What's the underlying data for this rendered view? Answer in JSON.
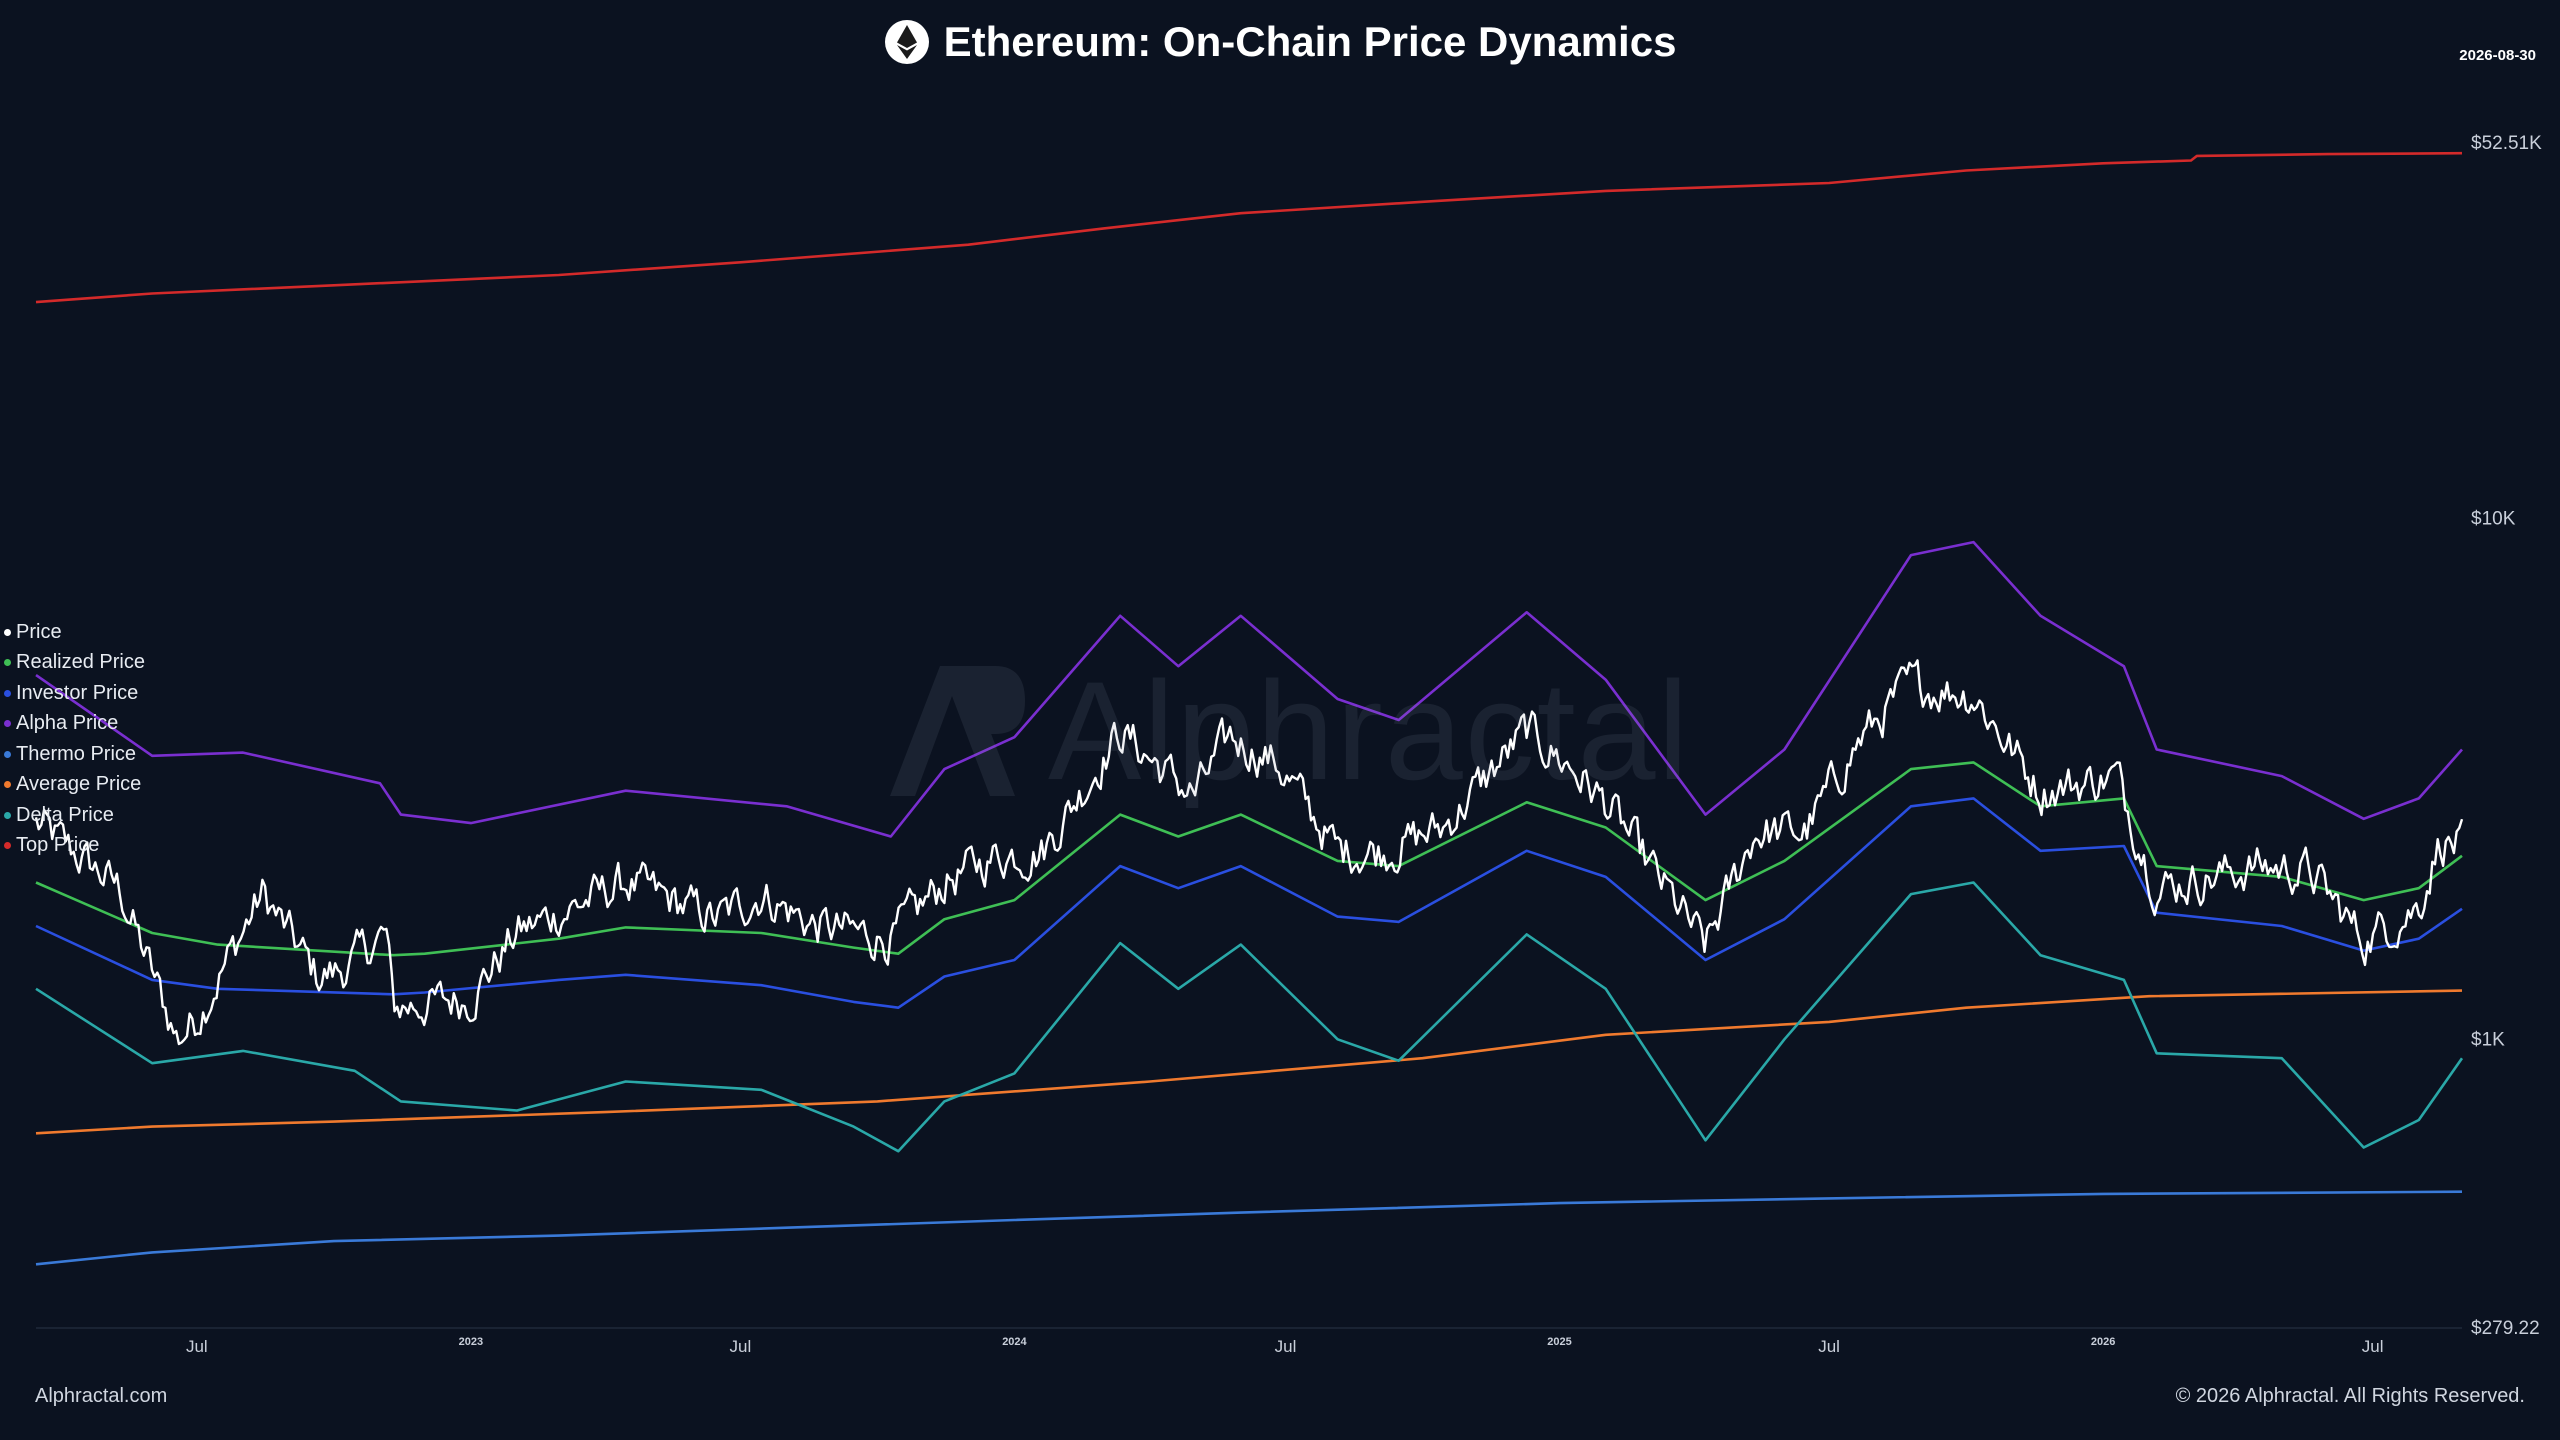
{
  "header": {
    "title": "Ethereum: On-Chain Price Dynamics",
    "date": "2026-08-30"
  },
  "footer": {
    "left": "Alphractal.com",
    "right": "© 2026 Alphractal. All Rights Reserved."
  },
  "watermark": "Alphractal",
  "chart_data": {
    "type": "line",
    "y_scale": "log",
    "ylim": [
      279.22,
      52510
    ],
    "x_range": [
      "2022-03-15",
      "2026-08-30"
    ],
    "y_ticks": [
      {
        "value": 52510,
        "label": "$52.51K"
      },
      {
        "value": 10000,
        "label": "$10K"
      },
      {
        "value": 1000,
        "label": "$1K"
      },
      {
        "value": 279.22,
        "label": "$279.22"
      }
    ],
    "x_ticks": [
      {
        "date": "2022-07-01",
        "label": "Jul",
        "style": "month"
      },
      {
        "date": "2023-01-01",
        "label": "2023",
        "style": "year"
      },
      {
        "date": "2023-07-01",
        "label": "Jul",
        "style": "month"
      },
      {
        "date": "2024-01-01",
        "label": "2024",
        "style": "year"
      },
      {
        "date": "2024-07-01",
        "label": "Jul",
        "style": "month"
      },
      {
        "date": "2025-01-01",
        "label": "2025",
        "style": "year"
      },
      {
        "date": "2025-07-01",
        "label": "Jul",
        "style": "month"
      },
      {
        "date": "2026-01-01",
        "label": "2026",
        "style": "year"
      },
      {
        "date": "2026-07-01",
        "label": "Jul",
        "style": "month"
      }
    ],
    "legend_position": "left",
    "series": [
      {
        "name": "Top Price",
        "color": "#d42a2a",
        "points": [
          [
            "2022-03-15",
            26000
          ],
          [
            "2022-06-01",
            27000
          ],
          [
            "2022-10-01",
            28000
          ],
          [
            "2023-03-01",
            29300
          ],
          [
            "2023-07-01",
            31000
          ],
          [
            "2023-12-01",
            33500
          ],
          [
            "2024-03-01",
            36000
          ],
          [
            "2024-06-01",
            38500
          ],
          [
            "2024-10-01",
            40500
          ],
          [
            "2025-02-01",
            42500
          ],
          [
            "2025-07-01",
            44000
          ],
          [
            "2025-10-01",
            46500
          ],
          [
            "2026-01-01",
            48000
          ],
          [
            "2026-03-01",
            48600
          ],
          [
            "2026-03-05",
            49600
          ],
          [
            "2026-06-01",
            50000
          ],
          [
            "2026-08-30",
            50200
          ]
        ]
      },
      {
        "name": "Realized Price",
        "color": "#3fbf55",
        "points": [
          [
            "2022-03-15",
            2000
          ],
          [
            "2022-06-01",
            1600
          ],
          [
            "2022-07-15",
            1520
          ],
          [
            "2022-11-10",
            1450
          ],
          [
            "2022-12-01",
            1460
          ],
          [
            "2023-03-01",
            1560
          ],
          [
            "2023-04-15",
            1640
          ],
          [
            "2023-07-15",
            1600
          ],
          [
            "2023-09-15",
            1500
          ],
          [
            "2023-10-15",
            1460
          ],
          [
            "2023-11-15",
            1700
          ],
          [
            "2024-01-01",
            1850
          ],
          [
            "2024-03-12",
            2700
          ],
          [
            "2024-04-20",
            2450
          ],
          [
            "2024-06-01",
            2700
          ],
          [
            "2024-08-05",
            2200
          ],
          [
            "2024-09-15",
            2150
          ],
          [
            "2024-12-10",
            2850
          ],
          [
            "2025-02-01",
            2550
          ],
          [
            "2025-04-09",
            1850
          ],
          [
            "2025-06-01",
            2200
          ],
          [
            "2025-08-25",
            3300
          ],
          [
            "2025-10-06",
            3400
          ],
          [
            "2025-11-20",
            2800
          ],
          [
            "2026-01-15",
            2900
          ],
          [
            "2026-02-06",
            2150
          ],
          [
            "2026-05-01",
            2050
          ],
          [
            "2026-06-25",
            1850
          ],
          [
            "2026-08-01",
            1950
          ],
          [
            "2026-08-30",
            2250
          ]
        ]
      },
      {
        "name": "Investor Price",
        "color": "#2a4fe0",
        "points": [
          [
            "2022-03-15",
            1650
          ],
          [
            "2022-06-01",
            1300
          ],
          [
            "2022-07-15",
            1250
          ],
          [
            "2022-11-10",
            1220
          ],
          [
            "2022-12-01",
            1230
          ],
          [
            "2023-03-01",
            1300
          ],
          [
            "2023-04-15",
            1330
          ],
          [
            "2023-07-15",
            1270
          ],
          [
            "2023-09-15",
            1180
          ],
          [
            "2023-10-15",
            1150
          ],
          [
            "2023-11-15",
            1320
          ],
          [
            "2024-01-01",
            1420
          ],
          [
            "2024-03-12",
            2150
          ],
          [
            "2024-04-20",
            1950
          ],
          [
            "2024-06-01",
            2150
          ],
          [
            "2024-08-05",
            1720
          ],
          [
            "2024-09-15",
            1680
          ],
          [
            "2024-12-10",
            2300
          ],
          [
            "2025-02-01",
            2050
          ],
          [
            "2025-04-09",
            1420
          ],
          [
            "2025-06-01",
            1700
          ],
          [
            "2025-08-25",
            2800
          ],
          [
            "2025-10-06",
            2900
          ],
          [
            "2025-11-20",
            2300
          ],
          [
            "2026-01-15",
            2350
          ],
          [
            "2026-02-06",
            1750
          ],
          [
            "2026-05-01",
            1650
          ],
          [
            "2026-06-25",
            1480
          ],
          [
            "2026-08-01",
            1560
          ],
          [
            "2026-08-30",
            1780
          ]
        ]
      },
      {
        "name": "Alpha Price",
        "color": "#7a2fd0",
        "points": [
          [
            "2022-03-15",
            5000
          ],
          [
            "2022-06-01",
            3500
          ],
          [
            "2022-08-01",
            3550
          ],
          [
            "2022-11-01",
            3100
          ],
          [
            "2022-11-15",
            2700
          ],
          [
            "2023-01-01",
            2600
          ],
          [
            "2023-04-15",
            3000
          ],
          [
            "2023-08-01",
            2800
          ],
          [
            "2023-10-10",
            2450
          ],
          [
            "2023-11-15",
            3300
          ],
          [
            "2024-01-01",
            3800
          ],
          [
            "2024-03-12",
            6500
          ],
          [
            "2024-04-20",
            5200
          ],
          [
            "2024-06-01",
            6500
          ],
          [
            "2024-08-05",
            4500
          ],
          [
            "2024-09-15",
            4100
          ],
          [
            "2024-12-10",
            6600
          ],
          [
            "2025-02-01",
            4900
          ],
          [
            "2025-04-09",
            2700
          ],
          [
            "2025-06-01",
            3600
          ],
          [
            "2025-08-25",
            8500
          ],
          [
            "2025-10-06",
            9000
          ],
          [
            "2025-11-20",
            6500
          ],
          [
            "2026-01-15",
            5200
          ],
          [
            "2026-02-06",
            3600
          ],
          [
            "2026-05-01",
            3200
          ],
          [
            "2026-06-25",
            2650
          ],
          [
            "2026-08-01",
            2900
          ],
          [
            "2026-08-30",
            3600
          ]
        ]
      },
      {
        "name": "Thermo Price",
        "color": "#3a7ad8",
        "points": [
          [
            "2022-03-15",
            370
          ],
          [
            "2022-06-01",
            390
          ],
          [
            "2022-10-01",
            410
          ],
          [
            "2023-03-01",
            420
          ],
          [
            "2023-08-01",
            435
          ],
          [
            "2024-01-01",
            450
          ],
          [
            "2024-06-01",
            465
          ],
          [
            "2025-01-01",
            485
          ],
          [
            "2025-07-01",
            495
          ],
          [
            "2026-01-01",
            505
          ],
          [
            "2026-08-30",
            510
          ]
        ]
      },
      {
        "name": "Average Price",
        "color": "#f07a2e",
        "points": [
          [
            "2022-03-15",
            660
          ],
          [
            "2022-06-01",
            680
          ],
          [
            "2022-10-01",
            695
          ],
          [
            "2023-04-01",
            725
          ],
          [
            "2023-10-01",
            760
          ],
          [
            "2024-04-01",
            830
          ],
          [
            "2024-10-01",
            920
          ],
          [
            "2025-02-01",
            1020
          ],
          [
            "2025-07-01",
            1080
          ],
          [
            "2025-10-01",
            1150
          ],
          [
            "2026-02-01",
            1210
          ],
          [
            "2026-08-30",
            1240
          ]
        ]
      },
      {
        "name": "Delta Price",
        "color": "#2aa8a8",
        "points": [
          [
            "2022-03-15",
            1250
          ],
          [
            "2022-06-01",
            900
          ],
          [
            "2022-08-01",
            950
          ],
          [
            "2022-10-15",
            870
          ],
          [
            "2022-11-15",
            760
          ],
          [
            "2023-02-01",
            730
          ],
          [
            "2023-04-15",
            830
          ],
          [
            "2023-07-15",
            800
          ],
          [
            "2023-09-15",
            680
          ],
          [
            "2023-10-15",
            610
          ],
          [
            "2023-11-15",
            760
          ],
          [
            "2024-01-01",
            860
          ],
          [
            "2024-03-12",
            1530
          ],
          [
            "2024-04-20",
            1250
          ],
          [
            "2024-06-01",
            1520
          ],
          [
            "2024-08-05",
            1000
          ],
          [
            "2024-09-15",
            910
          ],
          [
            "2024-12-10",
            1590
          ],
          [
            "2025-02-01",
            1250
          ],
          [
            "2025-04-09",
            640
          ],
          [
            "2025-06-01",
            1000
          ],
          [
            "2025-08-25",
            1900
          ],
          [
            "2025-10-06",
            2000
          ],
          [
            "2025-11-20",
            1450
          ],
          [
            "2026-01-15",
            1300
          ],
          [
            "2026-02-06",
            940
          ],
          [
            "2026-05-01",
            920
          ],
          [
            "2026-06-25",
            620
          ],
          [
            "2026-08-01",
            700
          ],
          [
            "2026-08-30",
            920
          ]
        ]
      },
      {
        "name": "Price",
        "color": "#ffffff",
        "jitter": 0.035,
        "points": [
          [
            "2022-03-15",
            2600
          ],
          [
            "2022-05-10",
            1950
          ],
          [
            "2022-06-18",
            1000
          ],
          [
            "2022-07-01",
            1100
          ],
          [
            "2022-08-14",
            1900
          ],
          [
            "2022-09-20",
            1320
          ],
          [
            "2022-10-05",
            1350
          ],
          [
            "2022-11-05",
            1600
          ],
          [
            "2022-11-10",
            1150
          ],
          [
            "2022-12-31",
            1200
          ],
          [
            "2023-02-01",
            1600
          ],
          [
            "2023-04-15",
            2000
          ],
          [
            "2023-06-15",
            1700
          ],
          [
            "2023-07-15",
            1900
          ],
          [
            "2023-08-20",
            1650
          ],
          [
            "2023-10-10",
            1560
          ],
          [
            "2023-11-15",
            2000
          ],
          [
            "2023-12-20",
            2250
          ],
          [
            "2024-01-20",
            2300
          ],
          [
            "2024-03-12",
            3900
          ],
          [
            "2024-04-20",
            3100
          ],
          [
            "2024-05-01",
            2950
          ],
          [
            "2024-05-25",
            3800
          ],
          [
            "2024-06-25",
            3400
          ],
          [
            "2024-08-05",
            2300
          ],
          [
            "2024-09-06",
            2300
          ],
          [
            "2024-10-15",
            2550
          ],
          [
            "2024-12-10",
            3900
          ],
          [
            "2025-01-10",
            3300
          ],
          [
            "2025-02-03",
            2800
          ],
          [
            "2025-03-10",
            2000
          ],
          [
            "2025-04-09",
            1500
          ],
          [
            "2025-05-12",
            2500
          ],
          [
            "2025-06-15",
            2500
          ],
          [
            "2025-07-20",
            3700
          ],
          [
            "2025-08-24",
            4800
          ],
          [
            "2025-10-06",
            4600
          ],
          [
            "2025-11-20",
            3000
          ],
          [
            "2026-01-10",
            3200
          ],
          [
            "2026-02-06",
            1950
          ],
          [
            "2026-03-15",
            2050
          ],
          [
            "2026-04-15",
            2150
          ],
          [
            "2026-05-20",
            2100
          ],
          [
            "2026-06-25",
            1550
          ],
          [
            "2026-08-01",
            1800
          ],
          [
            "2026-08-15",
            2400
          ],
          [
            "2026-08-30",
            2350
          ]
        ]
      }
    ]
  }
}
